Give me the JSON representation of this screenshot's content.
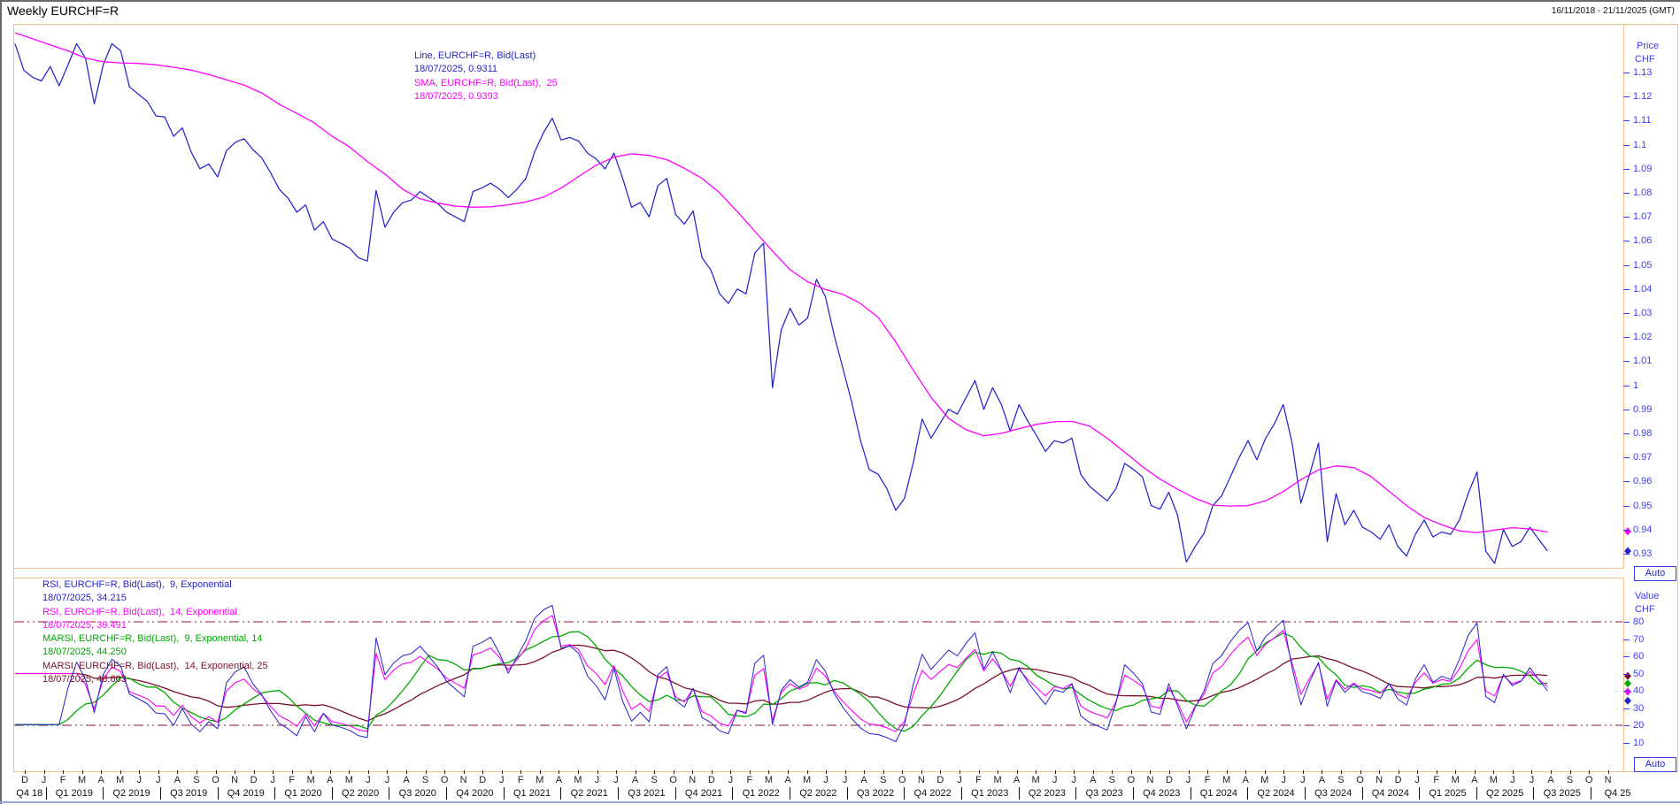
{
  "window": {
    "title": "Weekly EURCHF=R",
    "date_range": "16/11/2018 - 21/11/2025 (GMT)"
  },
  "colors": {
    "frame": "#f2c28e",
    "price_line": "#2424cc",
    "sma_line": "#ff00ff",
    "rsi9": "#2424cc",
    "rsi14": "#ff00ff",
    "marsi9": "#00aa00",
    "marsi14": "#7a1128",
    "threshold": "#8c1038",
    "axis_text": "#3c3cf5"
  },
  "price_panel": {
    "legend": [
      {
        "text": "Line, EURCHF=R, Bid(Last)",
        "color": "#2424cc"
      },
      {
        "text": "18/07/2025, 0.9311",
        "color": "#2424cc"
      },
      {
        "text": "SMA, EURCHF=R, Bid(Last),  25",
        "color": "#ff00ff"
      },
      {
        "text": "18/07/2025, 0.9393",
        "color": "#ff00ff"
      }
    ],
    "axis": {
      "title_line1": "Price",
      "title_line2": "CHF",
      "ticks": [
        "1.13",
        "1.12",
        "1.11",
        "1.1",
        "1.09",
        "1.08",
        "1.07",
        "1.06",
        "1.05",
        "1.04",
        "1.03",
        "1.02",
        "1.01",
        "1",
        "0.99",
        "0.98",
        "0.97",
        "0.96",
        "0.95",
        "0.94",
        "0.93"
      ],
      "markers": [
        {
          "value": 0.9393,
          "color": "#ff00ff",
          "name": "sma-current-marker"
        },
        {
          "value": 0.9311,
          "color": "#2424cc",
          "name": "price-current-marker"
        }
      ],
      "auto_label": "Auto"
    }
  },
  "indicator_panel": {
    "legend": [
      {
        "text": "RSI, EURCHF=R, Bid(Last),  9, Exponential",
        "color": "#2424cc"
      },
      {
        "text": "18/07/2025, 34.215",
        "color": "#2424cc"
      },
      {
        "text": "RSI, EURCHF=R, Bid(Last),  14, Exponential",
        "color": "#ff00ff"
      },
      {
        "text": "18/07/2025, 39.491",
        "color": "#ff00ff"
      },
      {
        "text": "MARSI, EURCHF=R, Bid(Last),  9, Exponential, 14",
        "color": "#00aa00"
      },
      {
        "text": "18/07/2025, 44.250",
        "color": "#00aa00"
      },
      {
        "text": "MARSI, EURCHF=R, Bid(Last),  14, Exponential, 25",
        "color": "#7a1128"
      },
      {
        "text": "18/07/2025, 48.603",
        "color": "#7a1128"
      }
    ],
    "axis": {
      "title_line1": "Value",
      "title_line2": "CHF",
      "ticks": [
        "80",
        "70",
        "60",
        "50",
        "40",
        "30",
        "20",
        "10"
      ],
      "markers": [
        {
          "value": 48.603,
          "color": "#7a1128",
          "name": "marsi14-current-marker"
        },
        {
          "value": 44.25,
          "color": "#00aa00",
          "name": "marsi9-current-marker"
        },
        {
          "value": 39.491,
          "color": "#ff00ff",
          "name": "rsi14-current-marker"
        },
        {
          "value": 34.215,
          "color": "#2424cc",
          "name": "rsi9-current-marker"
        }
      ],
      "auto_label": "Auto"
    }
  },
  "x_axis": {
    "month_letters": "DJFMAMJJASONDJFMAMJJASONDJFMAMJJASONDJFMAMJJASONDJFMAMJJASONDJFMAMJJASONDJFMAMJJASON",
    "quarter_labels": [
      "Q4 18",
      "Q1 2019",
      "Q2 2019",
      "Q3 2019",
      "Q4 2019",
      "Q1 2020",
      "Q2 2020",
      "Q3 2020",
      "Q4 2020",
      "Q1 2021",
      "Q2 2021",
      "Q3 2021",
      "Q4 2021",
      "Q1 2022",
      "Q2 2022",
      "Q3 2022",
      "Q4 2022",
      "Q1 2023",
      "Q2 2023",
      "Q3 2023",
      "Q4 2023",
      "Q1 2024",
      "Q2 2024",
      "Q3 2024",
      "Q4 2024",
      "Q1 2025",
      "Q2 2025",
      "Q3 2025",
      "Q4 25"
    ]
  },
  "chart_data": {
    "type": "line",
    "title": "Weekly EURCHF=R",
    "x_range": {
      "start": "16/11/2018",
      "end": "21/11/2025",
      "last_data_point": "18/07/2025"
    },
    "price_axis": {
      "label": "Price CHF",
      "min": 0.925,
      "max": 1.15,
      "ticks": [
        1.13,
        1.12,
        1.11,
        1.1,
        1.09,
        1.08,
        1.07,
        1.06,
        1.05,
        1.04,
        1.03,
        1.02,
        1.01,
        1,
        0.99,
        0.98,
        0.97,
        0.96,
        0.95,
        0.94,
        0.93
      ]
    },
    "series": [
      {
        "name": "Line, EURCHF=R, Bid(Last)",
        "color": "#2424cc",
        "sample_interval_weeks": 2,
        "last_value": 0.9311,
        "values": [
          1.142,
          1.131,
          1.128,
          1.1265,
          1.1325,
          1.1245,
          1.133,
          1.142,
          1.136,
          1.117,
          1.133,
          1.142,
          1.139,
          1.124,
          1.121,
          1.118,
          1.112,
          1.1115,
          1.1035,
          1.107,
          1.097,
          1.09,
          1.092,
          1.0866,
          1.0975,
          1.101,
          1.1025,
          1.098,
          1.0946,
          1.0885,
          1.0815,
          1.0778,
          1.0719,
          1.075,
          1.0645,
          1.068,
          1.0608,
          1.059,
          1.057,
          1.053,
          1.0516,
          1.081,
          1.0657,
          1.072,
          1.0759,
          1.077,
          1.0805,
          1.078,
          1.0755,
          1.072,
          1.07,
          1.068,
          1.0805,
          1.082,
          1.084,
          1.0815,
          1.078,
          1.0815,
          1.086,
          1.097,
          1.105,
          1.111,
          1.102,
          1.103,
          1.1015,
          1.0965,
          1.094,
          1.09,
          1.0965,
          1.086,
          1.074,
          1.076,
          1.07,
          1.083,
          1.086,
          1.071,
          1.067,
          1.0725,
          1.053,
          1.048,
          1.038,
          1.034,
          1.04,
          1.038,
          1.055,
          1.059,
          0.999,
          1.023,
          1.032,
          1.025,
          1.028,
          1.044,
          1.037,
          1.021,
          1.007,
          0.993,
          0.977,
          0.965,
          0.963,
          0.957,
          0.948,
          0.953,
          0.968,
          0.986,
          0.978,
          0.984,
          0.99,
          0.988,
          0.995,
          1.002,
          0.99,
          0.999,
          0.992,
          0.981,
          0.992,
          0.985,
          0.979,
          0.9725,
          0.977,
          0.976,
          0.978,
          0.963,
          0.958,
          0.955,
          0.952,
          0.957,
          0.9675,
          0.965,
          0.962,
          0.95,
          0.9485,
          0.9555,
          0.946,
          0.9265,
          0.933,
          0.9385,
          0.95,
          0.954,
          0.962,
          0.97,
          0.977,
          0.969,
          0.978,
          0.984,
          0.992,
          0.976,
          0.951,
          0.963,
          0.976,
          0.935,
          0.955,
          0.942,
          0.948,
          0.941,
          0.939,
          0.936,
          0.942,
          0.933,
          0.929,
          0.938,
          0.944,
          0.937,
          0.939,
          0.938,
          0.944,
          0.955,
          0.964,
          0.931,
          0.926,
          0.94,
          0.933,
          0.935,
          0.941,
          0.936,
          0.9311
        ]
      },
      {
        "name": "SMA, EURCHF=R, Bid(Last), 25",
        "color": "#ff00ff",
        "sample_interval_weeks": 4,
        "last_value": 0.9393,
        "values": [
          1.1465,
          1.144,
          1.1415,
          1.139,
          1.136,
          1.1345,
          1.134,
          1.1338,
          1.1332,
          1.1322,
          1.131,
          1.1292,
          1.127,
          1.1248,
          1.1215,
          1.1168,
          1.113,
          1.109,
          1.1035,
          1.099,
          1.093,
          1.0878,
          1.0815,
          1.0775,
          1.0757,
          1.0745,
          1.074,
          1.0742,
          1.075,
          1.0762,
          1.0782,
          1.082,
          1.0868,
          1.0915,
          1.0948,
          1.0962,
          1.0955,
          1.0938,
          1.0902,
          1.086,
          1.08,
          1.0722,
          1.064,
          1.0558,
          1.048,
          1.043,
          1.0398,
          1.0378,
          1.034,
          1.0282,
          1.018,
          1.0062,
          0.995,
          0.9862,
          0.9815,
          0.979,
          0.98,
          0.982,
          0.9838,
          0.9848,
          0.985,
          0.983,
          0.978,
          0.9722,
          0.9662,
          0.961,
          0.9568,
          0.953,
          0.9502,
          0.9498,
          0.95,
          0.952,
          0.9558,
          0.9608,
          0.9648,
          0.9665,
          0.9658,
          0.962,
          0.956,
          0.95,
          0.945,
          0.942,
          0.9395,
          0.9388,
          0.9398,
          0.9408,
          0.9403,
          0.939
        ]
      }
    ],
    "indicators": {
      "value_axis": {
        "label": "Value CHF",
        "ticks": [
          80,
          70,
          60,
          50,
          40,
          30,
          20,
          10
        ],
        "thresholds": [
          80,
          20
        ]
      },
      "series": [
        {
          "name": "RSI, EURCHF=R, Bid(Last), 9, Exponential",
          "color": "#2424cc",
          "derive": {
            "fn": "rsi",
            "period": 5,
            "source": "price"
          },
          "last_value": 34.215
        },
        {
          "name": "RSI, EURCHF=R, Bid(Last), 14, Exponential",
          "color": "#ff00ff",
          "derive": {
            "fn": "rsi",
            "period": 7,
            "source": "price"
          },
          "last_value": 39.491
        },
        {
          "name": "MARSI, EURCHF=R, Bid(Last), 9, Exponential, 14",
          "color": "#00aa00",
          "derive": {
            "fn": "sma",
            "period": 7,
            "source": "rsi5"
          },
          "last_value": 44.25
        },
        {
          "name": "MARSI, EURCHF=R, Bid(Last), 14, Exponential, 25",
          "color": "#7a1128",
          "derive": {
            "fn": "sma",
            "period": 12,
            "source": "rsi7"
          },
          "last_value": 48.603
        }
      ]
    }
  }
}
